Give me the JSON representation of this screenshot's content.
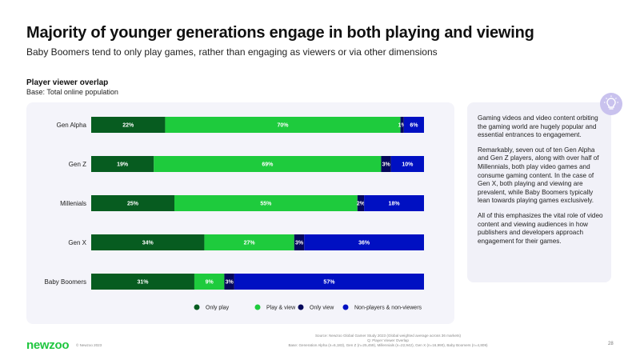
{
  "header": {
    "title": "Majority of younger generations engage in both playing and viewing",
    "subtitle": "Baby Boomers tend to only play games, rather than engaging as viewers or via other dimensions"
  },
  "chart_data": {
    "type": "bar",
    "orientation": "horizontal",
    "stacked": true,
    "title": "Player viewer overlap",
    "subtitle": "Base: Total online population",
    "categories": [
      "Gen Alpha",
      "Gen Z",
      "Millenials",
      "Gen X",
      "Baby Boomers"
    ],
    "series": [
      {
        "name": "Only play",
        "color": "#075c20",
        "values": [
          22,
          19,
          25,
          34,
          31
        ]
      },
      {
        "name": "Play & view",
        "color": "#1ecb3d",
        "values": [
          70,
          69,
          55,
          27,
          9
        ]
      },
      {
        "name": "Only view",
        "color": "#05085c",
        "values": [
          1,
          3,
          2,
          3,
          3
        ]
      },
      {
        "name": "Non-players & non-viewers",
        "color": "#0010c2",
        "values": [
          6,
          10,
          18,
          36,
          57
        ]
      }
    ],
    "value_labels": [
      [
        "22%",
        "19%",
        "25%",
        "34%",
        "31%"
      ],
      [
        "70%",
        "69%",
        "55%",
        "27%",
        "9%"
      ],
      [
        "1%",
        "3%",
        "2%",
        "3%",
        "3%"
      ],
      [
        "6%",
        "10%",
        "18%",
        "36%",
        "57%"
      ]
    ],
    "xlim": [
      0,
      100
    ],
    "legend_position": "bottom",
    "grid": false
  },
  "side_panel": {
    "paragraphs": [
      "Gaming videos and video content orbiting the gaming world are hugely popular and essential entrances to engagement.",
      "Remarkably, seven out of ten Gen Alpha and Gen Z players, along with over half of Millennials, both play video games and consume gaming content. In the case of Gen X, both playing and viewing are prevalent, while Baby Boomers typically lean towards playing games exclusively.",
      "All of this emphasizes the vital role of video content and viewing audiences in how publishers and developers approach engagement for their games."
    ],
    "icon": "lightbulb-icon"
  },
  "footer": {
    "logo": "newzoo",
    "copyright": "© Newzoo 2023",
    "source_lines": [
      "Source: Newzoo Global Gamer Study 2023 (Global weighted average across 36 markets)",
      "Q: Player Viewer Overlap",
      "Base: Generation Alpha (n=6,183), Gen Z (n=25,459), Millennials (n=22,942), Gen X (n=16,990), Baby Boomers (n=4,809)"
    ],
    "page_number": "28"
  }
}
